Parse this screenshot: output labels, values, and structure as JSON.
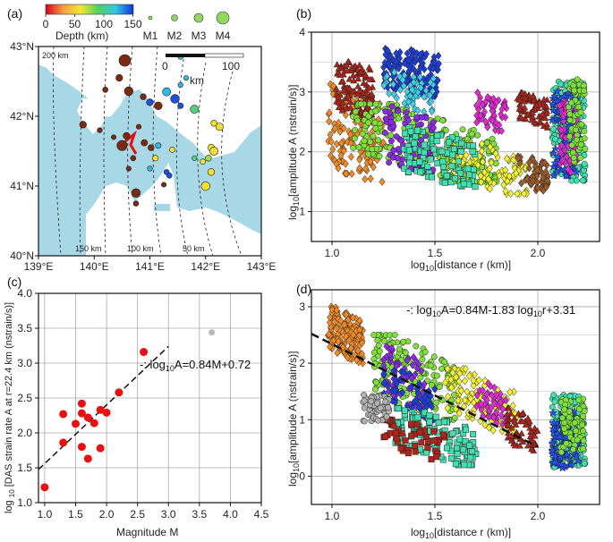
{
  "chart_data": [
    {
      "panel": "(a)",
      "type": "map",
      "colorbar": {
        "ticks": [
          "0",
          "50",
          "100",
          "150"
        ],
        "label": "Depth (km)",
        "colors": [
          "#d8001c",
          "#f2a040",
          "#f2e830",
          "#50d060",
          "#30c8e8",
          "#1030d8"
        ]
      },
      "magnitude_legend": [
        "M1",
        "M2",
        "M3",
        "M4"
      ],
      "scalebar": {
        "ticks": [
          "0",
          "100"
        ],
        "unit": "km"
      },
      "x_ticks": [
        "139°E",
        "140°E",
        "141°E",
        "142°E",
        "143°E"
      ],
      "y_ticks": [
        "43°N",
        "42°N",
        "41°N",
        "40°N"
      ],
      "xlim": [
        139,
        143
      ],
      "ylim": [
        40,
        43
      ],
      "distance_labels": [
        "200 km",
        "150 km",
        "100 km",
        "50 km"
      ],
      "events": [
        {
          "lon": 140.55,
          "lat": 42.8,
          "mag": 3.4,
          "depth": 150
        },
        {
          "lon": 140.45,
          "lat": 42.55,
          "mag": 2.0,
          "depth": 150
        },
        {
          "lon": 140.2,
          "lat": 42.38,
          "mag": 1.6,
          "depth": 150
        },
        {
          "lon": 140.62,
          "lat": 42.36,
          "mag": 2.6,
          "depth": 140
        },
        {
          "lon": 140.88,
          "lat": 42.28,
          "mag": 1.8,
          "depth": 150
        },
        {
          "lon": 139.8,
          "lat": 41.88,
          "mag": 2.0,
          "depth": 150
        },
        {
          "lon": 140.1,
          "lat": 41.8,
          "mag": 1.5,
          "depth": 150
        },
        {
          "lon": 140.35,
          "lat": 41.7,
          "mag": 1.4,
          "depth": 150
        },
        {
          "lon": 140.58,
          "lat": 41.72,
          "mag": 2.0,
          "depth": 150
        },
        {
          "lon": 140.8,
          "lat": 41.85,
          "mag": 1.5,
          "depth": 150
        },
        {
          "lon": 140.9,
          "lat": 41.62,
          "mag": 1.9,
          "depth": 130
        },
        {
          "lon": 141.02,
          "lat": 41.55,
          "mag": 1.8,
          "depth": 150
        },
        {
          "lon": 140.5,
          "lat": 41.58,
          "mag": 3.0,
          "depth": 150
        },
        {
          "lon": 140.7,
          "lat": 41.4,
          "mag": 1.6,
          "depth": 150
        },
        {
          "lon": 141.15,
          "lat": 41.58,
          "mag": 1.7,
          "depth": 80
        },
        {
          "lon": 141.1,
          "lat": 41.4,
          "mag": 1.7,
          "depth": 30
        },
        {
          "lon": 141.4,
          "lat": 41.52,
          "mag": 1.6,
          "depth": 25
        },
        {
          "lon": 141.0,
          "lat": 41.25,
          "mag": 1.5,
          "depth": 90
        },
        {
          "lon": 140.62,
          "lat": 41.25,
          "mag": 1.4,
          "depth": 150
        },
        {
          "lon": 141.3,
          "lat": 41.2,
          "mag": 1.6,
          "depth": 110
        },
        {
          "lon": 141.35,
          "lat": 41.15,
          "mag": 1.6,
          "depth": 120
        },
        {
          "lon": 141.25,
          "lat": 41.02,
          "mag": 1.4,
          "depth": 150
        },
        {
          "lon": 140.75,
          "lat": 40.9,
          "mag": 2.6,
          "depth": 150
        },
        {
          "lon": 140.75,
          "lat": 40.75,
          "mag": 1.6,
          "depth": 150
        },
        {
          "lon": 141.0,
          "lat": 42.2,
          "mag": 2.0,
          "depth": 120
        },
        {
          "lon": 141.15,
          "lat": 42.15,
          "mag": 2.3,
          "depth": 150
        },
        {
          "lon": 141.3,
          "lat": 42.35,
          "mag": 2.4,
          "depth": 80
        },
        {
          "lon": 141.55,
          "lat": 42.45,
          "mag": 1.5,
          "depth": 90
        },
        {
          "lon": 141.65,
          "lat": 42.55,
          "mag": 1.4,
          "depth": 85
        },
        {
          "lon": 141.45,
          "lat": 42.25,
          "mag": 2.6,
          "depth": 100
        },
        {
          "lon": 141.55,
          "lat": 42.15,
          "mag": 1.7,
          "depth": 110
        },
        {
          "lon": 141.8,
          "lat": 42.1,
          "mag": 2.4,
          "depth": 70
        },
        {
          "lon": 142.15,
          "lat": 41.9,
          "mag": 1.8,
          "depth": 35
        },
        {
          "lon": 142.25,
          "lat": 41.85,
          "mag": 2.2,
          "depth": 40
        },
        {
          "lon": 142.1,
          "lat": 41.55,
          "mag": 2.0,
          "depth": 40
        },
        {
          "lon": 142.15,
          "lat": 41.5,
          "mag": 2.4,
          "depth": 35
        },
        {
          "lon": 142.05,
          "lat": 41.4,
          "mag": 1.8,
          "depth": 45
        },
        {
          "lon": 141.95,
          "lat": 41.35,
          "mag": 1.6,
          "depth": 40
        },
        {
          "lon": 142.1,
          "lat": 41.2,
          "mag": 2.0,
          "depth": 40
        },
        {
          "lon": 142.0,
          "lat": 41.0,
          "mag": 2.6,
          "depth": 35
        },
        {
          "lon": 141.8,
          "lat": 41.4,
          "mag": 1.5,
          "depth": 60
        },
        {
          "lon": 141.55,
          "lat": 42.85,
          "mag": 1.5,
          "depth": 80
        }
      ]
    },
    {
      "panel": "(b)",
      "type": "scatter",
      "xlabel": "log10[distance r (km)]",
      "ylabel": "log10[amplitude A (nstrain/s)]",
      "xlim": [
        0.9,
        2.3
      ],
      "ylim": [
        0.5,
        4.0
      ],
      "x_ticks": [
        "1.0",
        "1.5",
        "2.0"
      ],
      "y_ticks": [
        "1",
        "2",
        "3",
        "4"
      ],
      "grid": true,
      "series_colors": [
        "#f08a24",
        "#b0251a",
        "#1e3ed8",
        "#3fcfe8",
        "#7fe03a",
        "#8a2be2",
        "#e02ad0",
        "#f2f230",
        "#40e0b0",
        "#9a5a2a",
        "#2050ff",
        "#40c0ff"
      ],
      "clusters": [
        {
          "color": "#f08a24",
          "x": [
            0.98,
            1.25
          ],
          "y": [
            1.4,
            3.2
          ],
          "slope": -1.0,
          "n": 160,
          "shape": "diamond"
        },
        {
          "color": "#b0251a",
          "x": [
            1.02,
            1.2
          ],
          "y": [
            2.5,
            3.6
          ],
          "slope": -1.2,
          "n": 120,
          "shape": "triangle"
        },
        {
          "color": "#1e3ed8",
          "x": [
            1.25,
            1.52
          ],
          "y": [
            2.9,
            3.8
          ],
          "slope": -0.6,
          "n": 170,
          "shape": "diamond"
        },
        {
          "color": "#3fcfe8",
          "x": [
            1.25,
            1.5
          ],
          "y": [
            2.6,
            3.4
          ],
          "slope": -0.6,
          "n": 60,
          "shape": "diamond"
        },
        {
          "color": "#7fe03a",
          "x": [
            1.1,
            1.8
          ],
          "y": [
            1.5,
            2.8
          ],
          "slope": -1.2,
          "n": 260,
          "shape": "circle"
        },
        {
          "color": "#8a2be2",
          "x": [
            1.25,
            1.5
          ],
          "y": [
            1.6,
            2.8
          ],
          "slope": -1.0,
          "n": 90,
          "shape": "circle"
        },
        {
          "color": "#e02ad0",
          "x": [
            1.7,
            1.85
          ],
          "y": [
            2.3,
            3.0
          ],
          "slope": -1.0,
          "n": 60,
          "shape": "diamond"
        },
        {
          "color": "#f2f230",
          "x": [
            1.55,
            1.95
          ],
          "y": [
            1.3,
            2.2
          ],
          "slope": -1.2,
          "n": 110,
          "shape": "diamond"
        },
        {
          "color": "#40e0b0",
          "x": [
            1.35,
            1.7
          ],
          "y": [
            1.4,
            2.4
          ],
          "slope": -1.0,
          "n": 110,
          "shape": "square"
        },
        {
          "color": "#b0251a",
          "x": [
            1.9,
            2.05
          ],
          "y": [
            2.4,
            3.0
          ],
          "slope": -1.0,
          "n": 70,
          "shape": "triangle"
        },
        {
          "color": "#9a5a2a",
          "x": [
            1.9,
            2.05
          ],
          "y": [
            1.3,
            2.0
          ],
          "slope": -1.0,
          "n": 60,
          "shape": "diamond"
        },
        {
          "color": "#40e0b0",
          "x": [
            2.07,
            2.23
          ],
          "y": [
            1.3,
            3.4
          ],
          "slope": 0,
          "n": 180,
          "shape": "circle"
        },
        {
          "color": "#2050ff",
          "x": [
            2.07,
            2.2
          ],
          "y": [
            1.4,
            3.2
          ],
          "slope": 0,
          "n": 90,
          "shape": "star"
        },
        {
          "color": "#e02ad0",
          "x": [
            2.1,
            2.2
          ],
          "y": [
            1.5,
            3.0
          ],
          "slope": 0,
          "n": 60,
          "shape": "diamond"
        },
        {
          "color": "#7fe03a",
          "x": [
            2.15,
            2.23
          ],
          "y": [
            1.6,
            3.4
          ],
          "slope": 0,
          "n": 70,
          "shape": "circle"
        }
      ]
    },
    {
      "panel": "(c)",
      "type": "scatter",
      "xlabel": "Magnitude M",
      "ylabel": "log 10 [DAS strain rate A at r=22.4 km (nstrain/s)]",
      "xlim": [
        0.9,
        4.5
      ],
      "ylim": [
        1.0,
        4.0
      ],
      "x_ticks": [
        "1.0",
        "1.5",
        "2.0",
        "2.5",
        "3.0",
        "3.5",
        "4.0",
        "4.5"
      ],
      "y_ticks": [
        "1.0",
        "1.5",
        "2.0",
        "2.5",
        "3.0",
        "3.5",
        "4.0"
      ],
      "grid": true,
      "equation": "-: log10A=0.84M+0.72",
      "fit": {
        "slope": 0.84,
        "intercept": 0.72,
        "x_range": [
          0.9,
          3.0
        ]
      },
      "points": [
        {
          "x": 1.0,
          "y": 1.22
        },
        {
          "x": 1.3,
          "y": 1.86
        },
        {
          "x": 1.3,
          "y": 2.27
        },
        {
          "x": 1.5,
          "y": 2.13
        },
        {
          "x": 1.6,
          "y": 1.8
        },
        {
          "x": 1.6,
          "y": 2.28
        },
        {
          "x": 1.6,
          "y": 2.42
        },
        {
          "x": 1.7,
          "y": 2.22
        },
        {
          "x": 1.7,
          "y": 1.63
        },
        {
          "x": 1.8,
          "y": 2.14
        },
        {
          "x": 1.9,
          "y": 1.78
        },
        {
          "x": 1.9,
          "y": 2.33
        },
        {
          "x": 2.0,
          "y": 2.29
        },
        {
          "x": 2.2,
          "y": 2.58
        },
        {
          "x": 2.6,
          "y": 3.16
        }
      ],
      "outlier": {
        "x": 3.7,
        "y": 3.44
      }
    },
    {
      "panel": "(d)",
      "type": "scatter",
      "xlabel": "log10[distance r (km)]",
      "ylabel": "log10[amplitude A (nstrain/s)]",
      "xlim": [
        0.9,
        2.3
      ],
      "ylim": [
        -0.5,
        3.3
      ],
      "x_ticks": [
        "1.0",
        "1.5",
        "2.0"
      ],
      "y_ticks": [
        "0",
        "1",
        "2",
        "3"
      ],
      "grid": true,
      "equation": "-: log10A=0.84M-1.83 log10r+3.31",
      "fit": {
        "x": [
          0.9,
          2.0
        ],
        "y": [
          2.52,
          0.52
        ]
      },
      "clusters": [
        {
          "color": "#f08a24",
          "x": [
            0.98,
            1.15
          ],
          "y": [
            2.0,
            3.0
          ],
          "slope": -2.0,
          "n": 150,
          "shape": "diamond"
        },
        {
          "color": "#7fe03a",
          "x": [
            1.2,
            1.6
          ],
          "y": [
            1.0,
            2.5
          ],
          "slope": -1.8,
          "n": 170,
          "shape": "circle"
        },
        {
          "color": "#8a2be2",
          "x": [
            1.25,
            1.45
          ],
          "y": [
            1.2,
            2.3
          ],
          "slope": -1.8,
          "n": 70,
          "shape": "diamond"
        },
        {
          "color": "#1e3ed8",
          "x": [
            1.25,
            1.5
          ],
          "y": [
            1.0,
            1.9
          ],
          "slope": -1.8,
          "n": 60,
          "shape": "diamond"
        },
        {
          "color": "#f2f230",
          "x": [
            1.55,
            1.9
          ],
          "y": [
            0.8,
            1.9
          ],
          "slope": -1.8,
          "n": 110,
          "shape": "diamond"
        },
        {
          "color": "#40e0b0",
          "x": [
            1.3,
            1.7
          ],
          "y": [
            0.2,
            1.2
          ],
          "slope": -1.5,
          "n": 120,
          "shape": "square"
        },
        {
          "color": "#b0251a",
          "x": [
            1.25,
            1.55
          ],
          "y": [
            0.3,
            1.0
          ],
          "slope": -1.2,
          "n": 50,
          "shape": "square"
        },
        {
          "color": "#b0b0b0",
          "x": [
            1.15,
            1.28
          ],
          "y": [
            0.9,
            1.5
          ],
          "slope": 0,
          "n": 60,
          "shape": "circle"
        },
        {
          "color": "#e02ad0",
          "x": [
            1.7,
            1.85
          ],
          "y": [
            0.9,
            1.7
          ],
          "slope": -1.5,
          "n": 50,
          "shape": "diamond"
        },
        {
          "color": "#b0251a",
          "x": [
            1.85,
            2.0
          ],
          "y": [
            0.4,
            1.2
          ],
          "slope": -1.5,
          "n": 60,
          "shape": "triangle"
        },
        {
          "color": "#40e0b0",
          "x": [
            2.07,
            2.23
          ],
          "y": [
            0.0,
            1.6
          ],
          "slope": 0,
          "n": 180,
          "shape": "circle"
        },
        {
          "color": "#2050ff",
          "x": [
            2.07,
            2.2
          ],
          "y": [
            0.0,
            1.3
          ],
          "slope": 0,
          "n": 90,
          "shape": "star"
        },
        {
          "color": "#7fe03a",
          "x": [
            2.1,
            2.23
          ],
          "y": [
            0.3,
            1.5
          ],
          "slope": 0,
          "n": 70,
          "shape": "circle"
        }
      ]
    }
  ]
}
